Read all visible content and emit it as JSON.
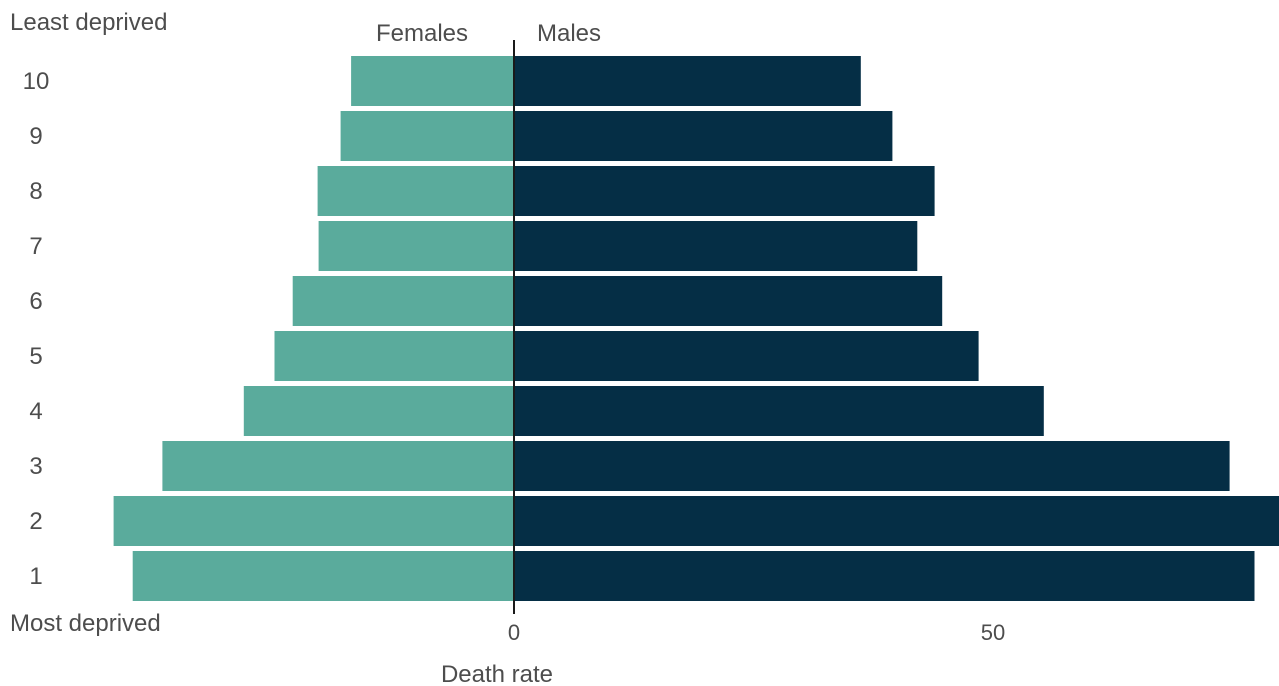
{
  "chart_data": {
    "type": "bar",
    "orientation": "horizontal-diverging",
    "title": "",
    "xlabel": "Death rate",
    "top_label": "Least deprived",
    "bottom_label": "Most deprived",
    "categories": [
      "10",
      "9",
      "8",
      "7",
      "6",
      "5",
      "4",
      "3",
      "2",
      "1"
    ],
    "series": [
      {
        "name": "Females",
        "color": "#5aab9c",
        "values": [
          17.0,
          18.1,
          20.5,
          20.4,
          23.1,
          25.0,
          28.2,
          36.7,
          41.8,
          39.8
        ]
      },
      {
        "name": "Males",
        "color": "#052e45",
        "values": [
          36.2,
          39.5,
          43.9,
          42.1,
          44.7,
          48.5,
          55.3,
          74.7,
          80.0,
          77.3
        ]
      }
    ],
    "xlim": [
      -42,
      80
    ],
    "xticks": [
      0,
      50
    ],
    "grid": false,
    "legend": "top-center"
  }
}
